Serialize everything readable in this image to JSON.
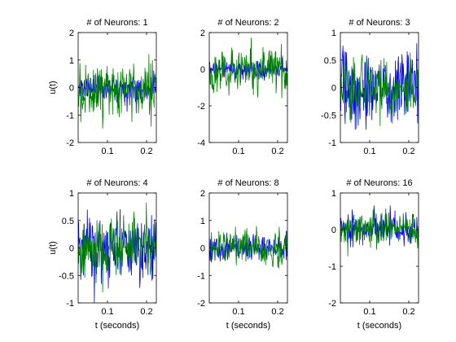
{
  "figure": {
    "background": "#ffffff"
  },
  "chart_data": [
    {
      "type": "line",
      "title": "# of Neurons: 1",
      "xlabel": "",
      "ylabel": "u(t)",
      "xlim": [
        0.025,
        0.225
      ],
      "ylim": [
        -2,
        2
      ],
      "xticks": [
        0.1,
        0.2
      ],
      "yticks": [
        -2,
        -1,
        0,
        1,
        2
      ],
      "ytick_labels": [
        "-2",
        "-1",
        "0",
        "1",
        "2"
      ],
      "series": [
        {
          "color": "#0000ff",
          "amplitude": 0.7,
          "seed": 11
        },
        {
          "color": "#008000",
          "amplitude": 1.6,
          "seed": 12
        }
      ]
    },
    {
      "type": "line",
      "title": "# of Neurons: 2",
      "xlabel": "",
      "ylabel": "",
      "xlim": [
        0.025,
        0.225
      ],
      "ylim": [
        -4,
        2
      ],
      "xticks": [
        0.1,
        0.2
      ],
      "yticks": [
        -4,
        -2,
        0,
        2
      ],
      "ytick_labels": [
        "-4",
        "-2",
        "0",
        "2"
      ],
      "series": [
        {
          "color": "#0000ff",
          "amplitude": 0.8,
          "seed": 21
        },
        {
          "color": "#008000",
          "amplitude": 1.9,
          "seed": 22
        }
      ]
    },
    {
      "type": "line",
      "title": "# of Neurons: 3",
      "xlabel": "",
      "ylabel": "",
      "xlim": [
        0.025,
        0.225
      ],
      "ylim": [
        -1,
        1
      ],
      "xticks": [
        0.1,
        0.2
      ],
      "yticks": [
        -1,
        -0.5,
        0,
        0.5,
        1
      ],
      "ytick_labels": [
        "-1",
        "-0.5",
        "0",
        "0.5",
        "1"
      ],
      "series": [
        {
          "color": "#0000ff",
          "amplitude": 0.95,
          "seed": 31
        },
        {
          "color": "#008000",
          "amplitude": 0.8,
          "seed": 32
        }
      ]
    },
    {
      "type": "line",
      "title": "# of Neurons: 4",
      "xlabel": "t (seconds)",
      "ylabel": "u(t)",
      "xlim": [
        0.025,
        0.225
      ],
      "ylim": [
        -1,
        1
      ],
      "xticks": [
        0.1,
        0.2
      ],
      "yticks": [
        -1,
        -0.5,
        0,
        0.5,
        1
      ],
      "ytick_labels": [
        "-1",
        "-0.5",
        "0",
        "0.5",
        "1"
      ],
      "series": [
        {
          "color": "#0000ff",
          "amplitude": 0.95,
          "seed": 41
        },
        {
          "color": "#008000",
          "amplitude": 0.8,
          "seed": 42
        }
      ]
    },
    {
      "type": "line",
      "title": "# of Neurons: 8",
      "xlabel": "t (seconds)",
      "ylabel": "",
      "xlim": [
        0.025,
        0.225
      ],
      "ylim": [
        -2,
        2
      ],
      "xticks": [
        0.1,
        0.2
      ],
      "yticks": [
        -2,
        -1,
        0,
        1,
        2
      ],
      "ytick_labels": [
        "-2",
        "-1",
        "0",
        "1",
        "2"
      ],
      "series": [
        {
          "color": "#0000ff",
          "amplitude": 0.7,
          "seed": 81
        },
        {
          "color": "#008000",
          "amplitude": 0.95,
          "seed": 82
        }
      ]
    },
    {
      "type": "line",
      "title": "# of Neurons: 16",
      "xlabel": "t (seconds)",
      "ylabel": "",
      "xlim": [
        0.025,
        0.225
      ],
      "ylim": [
        -2,
        1
      ],
      "xticks": [
        0.1,
        0.2
      ],
      "yticks": [
        -2,
        -1,
        0,
        1
      ],
      "ytick_labels": [
        "-2",
        "-1",
        "0",
        "1"
      ],
      "series": [
        {
          "color": "#0000ff",
          "amplitude": 0.6,
          "seed": 161
        },
        {
          "color": "#008000",
          "amplitude": 0.7,
          "seed": 162
        }
      ]
    }
  ]
}
